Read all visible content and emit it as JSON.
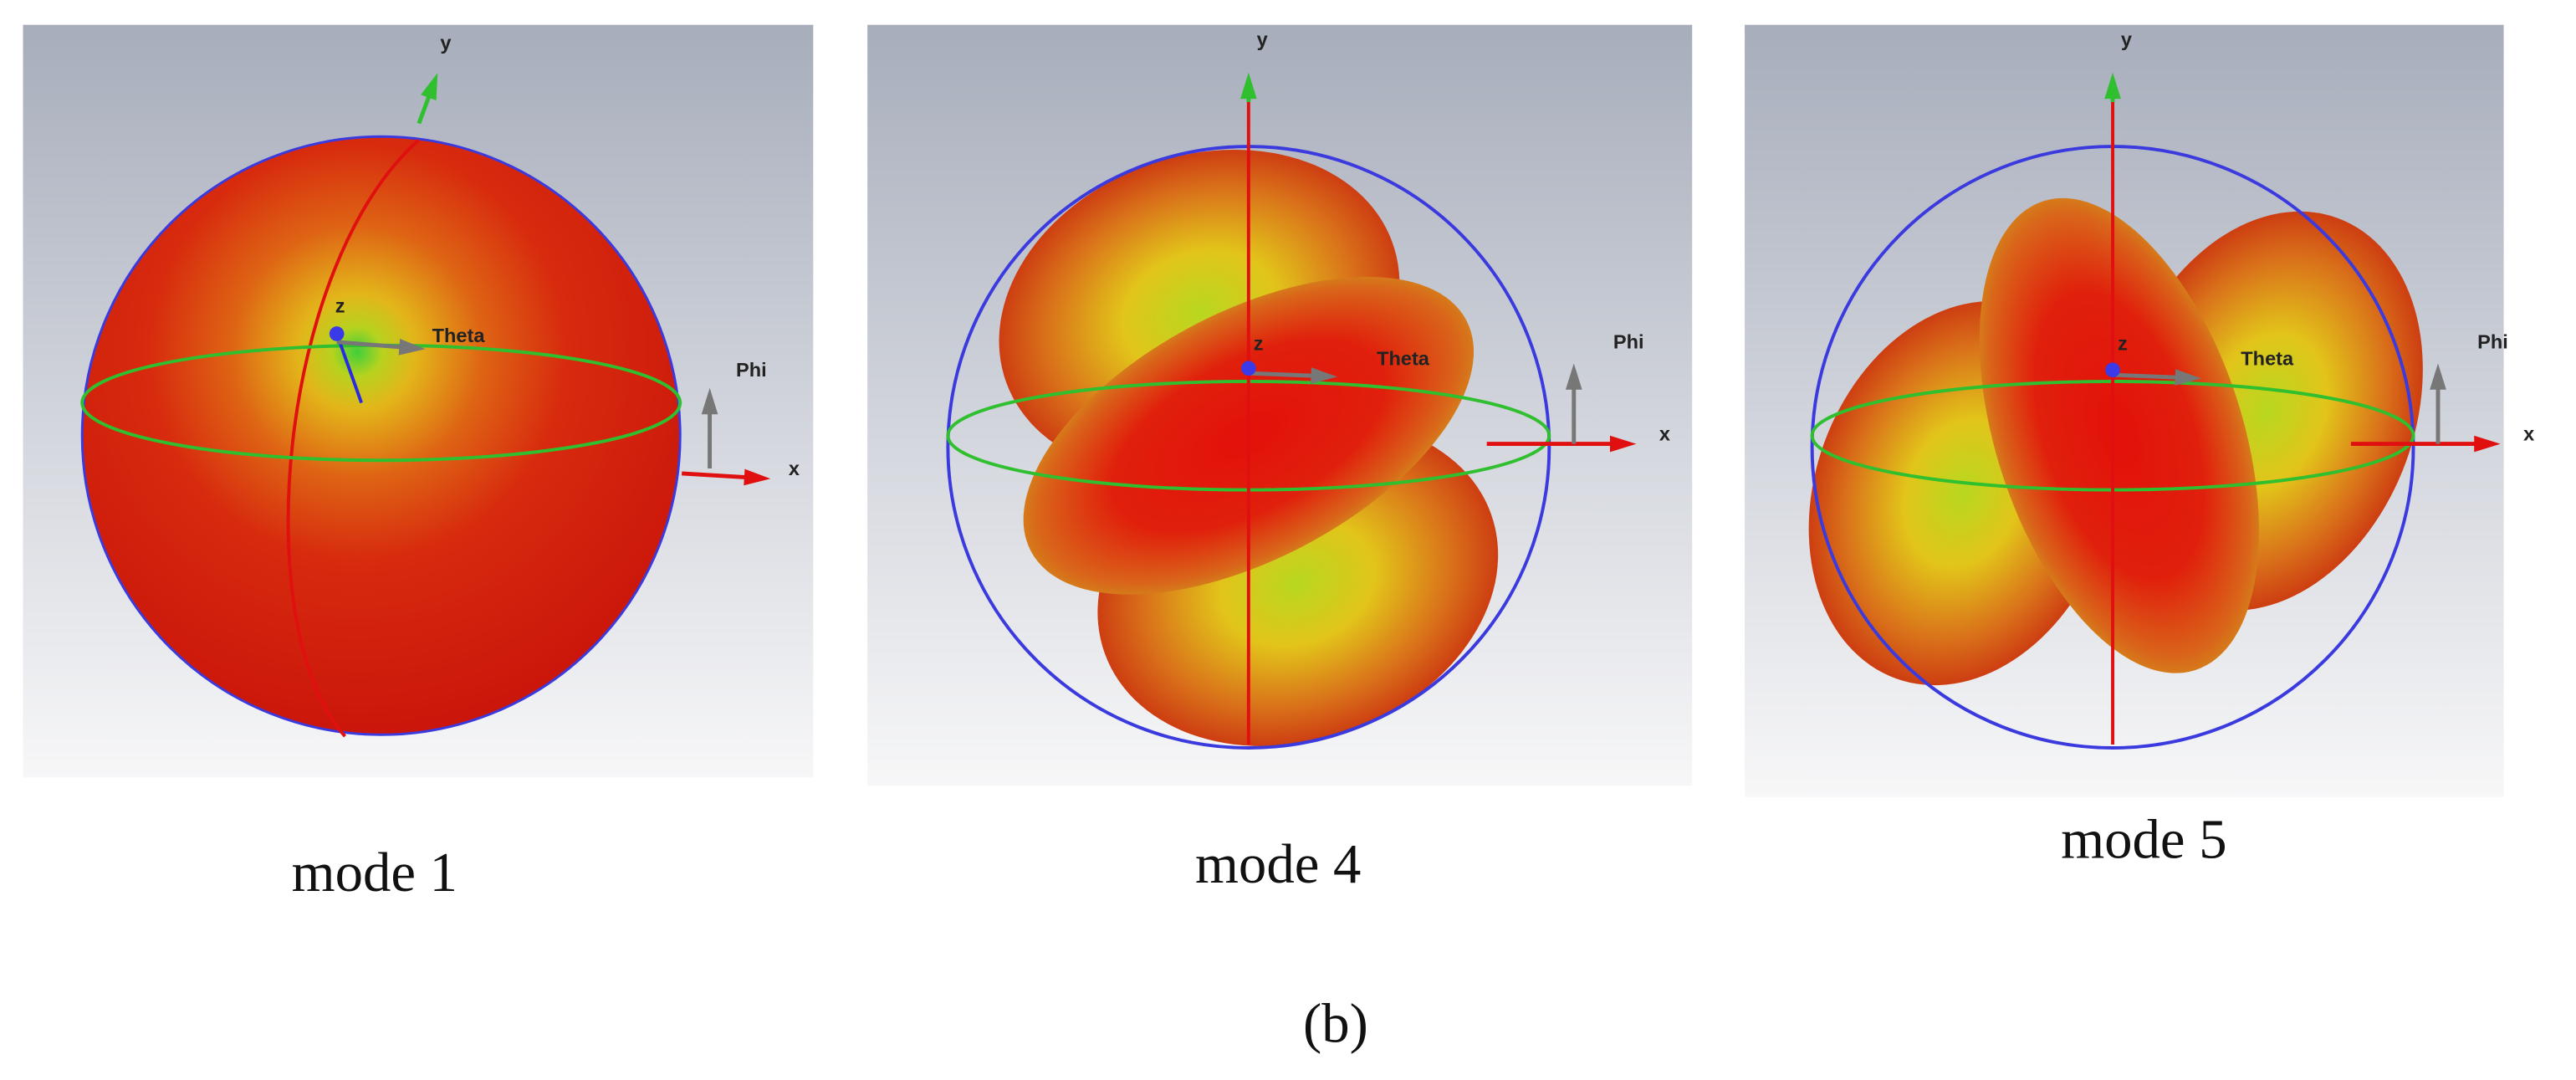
{
  "panels": [
    {
      "caption": "mode 1",
      "axes": {
        "x": "x",
        "y": "y",
        "z": "z",
        "theta": "Theta",
        "phi": "Phi"
      }
    },
    {
      "caption": "mode 4",
      "axes": {
        "x": "x",
        "y": "y",
        "z": "z",
        "theta": "Theta",
        "phi": "Phi"
      }
    },
    {
      "caption": "mode 5",
      "axes": {
        "x": "x",
        "y": "y",
        "z": "z",
        "theta": "Theta",
        "phi": "Phi"
      }
    }
  ],
  "figure_label": "(b)"
}
